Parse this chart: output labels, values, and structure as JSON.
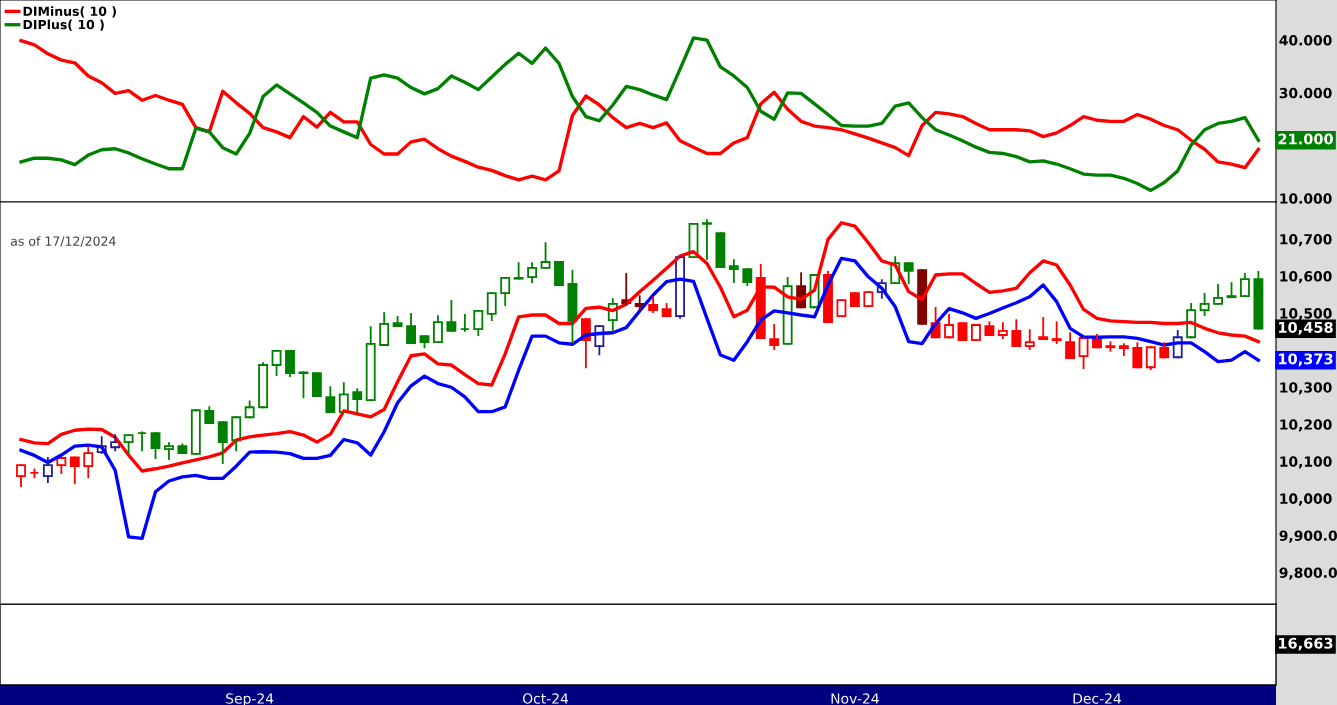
{
  "chart_data": [
    {
      "type": "line",
      "series": [
        {
          "name": "DIMinus( 10 )",
          "color": "#ff0000",
          "values": [
            39.9,
            39.1,
            37.4,
            36.2,
            35.7,
            33.2,
            31.9,
            29.9,
            30.4,
            28.6,
            29.5,
            28.6,
            27.8,
            23.4,
            22.6,
            30.3,
            28.1,
            26.1,
            23.4,
            22.6,
            21.5,
            25.5,
            23.5,
            26.3,
            24.5,
            24.5,
            20.2,
            18.4,
            18.4,
            20.7,
            21.2,
            19.4,
            18.0,
            17.0,
            15.9,
            15.3,
            14.3,
            13.5,
            14.2,
            13.5,
            15.2,
            25.7,
            29.4,
            27.7,
            25.3,
            23.4,
            24.2,
            23.4,
            24.3,
            20.9,
            19.7,
            18.5,
            18.5,
            20.5,
            21.5,
            27.9,
            30.1,
            26.9,
            24.6,
            23.7,
            23.4,
            23.0,
            22.2,
            21.4,
            20.5,
            19.6,
            18.1,
            23.8,
            26.3,
            26.0,
            25.5,
            24.2,
            23.0,
            23.0,
            23.0,
            22.8,
            21.7,
            22.4,
            23.8,
            25.5,
            24.8,
            24.6,
            24.6,
            25.9,
            25.0,
            23.8,
            23.0,
            21.0,
            19.3,
            16.9,
            16.5,
            15.8,
            19.3
          ]
        },
        {
          "name": "DIPlus( 10 )",
          "color": "#008000",
          "value_labels": [
            null,
            null,
            null,
            null,
            null,
            null,
            null,
            null,
            null,
            null,
            null,
            null,
            null,
            null,
            null,
            null,
            null,
            null,
            null,
            null,
            null,
            null,
            null,
            null,
            null,
            null,
            null,
            null,
            null,
            null,
            null,
            null,
            null,
            null,
            null,
            null,
            null,
            null,
            null,
            null,
            null,
            null,
            null,
            null,
            null,
            null,
            null,
            null,
            null,
            null,
            null,
            null,
            null,
            null,
            null,
            null,
            null,
            null,
            null,
            null,
            null,
            null,
            null,
            null,
            null,
            null,
            null,
            null,
            null,
            null,
            null,
            null,
            null,
            null,
            null,
            null,
            null,
            null,
            null,
            null,
            null,
            null,
            null,
            null,
            null,
            null,
            null,
            null,
            null,
            null,
            null,
            null,
            "21.000"
          ],
          "values": [
            16.9,
            17.6,
            17.6,
            17.3,
            16.4,
            18.2,
            19.2,
            19.4,
            18.6,
            17.5,
            16.5,
            15.6,
            15.6,
            23.3,
            22.6,
            19.6,
            18.4,
            22.3,
            29.3,
            31.5,
            29.8,
            28.1,
            26.3,
            23.7,
            22.6,
            21.5,
            32.8,
            33.4,
            32.8,
            31.0,
            29.8,
            30.8,
            33.2,
            32.0,
            30.6,
            33.0,
            35.4,
            37.5,
            35.6,
            38.5,
            35.6,
            29.3,
            25.5,
            24.7,
            27.7,
            31.2,
            30.6,
            29.6,
            28.7,
            34.5,
            40.4,
            40.0,
            34.9,
            33.2,
            31.0,
            26.5,
            25.0,
            30.0,
            29.9,
            27.9,
            25.9,
            23.8,
            23.7,
            23.7,
            24.2,
            27.5,
            28.1,
            25.3,
            23.0,
            22.0,
            20.9,
            19.7,
            18.7,
            18.5,
            17.9,
            16.9,
            17.1,
            16.5,
            15.6,
            14.6,
            14.4,
            14.4,
            13.8,
            12.8,
            11.5,
            13.0,
            15.2,
            20.1,
            23.0,
            24.2,
            24.6,
            25.3,
            21
          ]
        }
      ],
      "ylim": [
        9.3,
        47.6
      ],
      "yticks": [
        {
          "value": 10,
          "label": "10.000"
        },
        {
          "value": 30,
          "label": "30.000"
        },
        {
          "value": 40,
          "label": "40.000"
        }
      ],
      "tick_labels": "y",
      "legend": "top left"
    },
    {
      "type": "candlestick",
      "categories": [
        null,
        null,
        null,
        null,
        null,
        null,
        null,
        null,
        null,
        null,
        null,
        null,
        null,
        null,
        null,
        null,
        null,
        "Sep-24",
        null,
        null,
        null,
        null,
        null,
        null,
        null,
        null,
        null,
        null,
        null,
        null,
        null,
        null,
        null,
        null,
        null,
        null,
        null,
        null,
        null,
        "Oct-24",
        null,
        null,
        null,
        null,
        null,
        null,
        null,
        null,
        null,
        null,
        null,
        null,
        null,
        null,
        null,
        null,
        null,
        null,
        null,
        null,
        null,
        null,
        "Nov-24",
        null,
        null,
        null,
        null,
        null,
        null,
        null,
        null,
        null,
        null,
        null,
        null,
        null,
        null,
        null,
        null,
        null,
        "Dec-24",
        null,
        null,
        null,
        null,
        null,
        null,
        null,
        null,
        null,
        null,
        null,
        null
      ],
      "ohlc": [
        [
          10060,
          10090,
          10033,
          10090
        ],
        [
          10069,
          10078,
          10057,
          10069
        ],
        [
          10060,
          10109,
          10044,
          10090
        ],
        [
          10090,
          10109,
          10068,
          10109
        ],
        [
          10111,
          10111,
          10041,
          10087
        ],
        [
          10087,
          10138,
          10057,
          10122
        ],
        [
          10125,
          10165,
          10122,
          10141
        ],
        [
          10138,
          10171,
          10130,
          10152
        ],
        [
          10152,
          10171,
          10122,
          10171
        ],
        [
          10176,
          10178,
          10130,
          10176
        ],
        [
          10176,
          10176,
          10109,
          10136
        ],
        [
          10133,
          10149,
          10106,
          10141
        ],
        [
          10141,
          10146,
          10122,
          10122
        ],
        [
          10120,
          10238,
          10120,
          10238
        ],
        [
          10236,
          10246,
          10203,
          10203
        ],
        [
          10206,
          10206,
          10095,
          10152
        ],
        [
          10157,
          10219,
          10130,
          10219
        ],
        [
          10219,
          10262,
          10219,
          10246
        ],
        [
          10246,
          10365,
          10246,
          10360
        ],
        [
          10360,
          10398,
          10333,
          10398
        ],
        [
          10398,
          10398,
          10330,
          10338
        ],
        [
          10340,
          10341,
          10273,
          10338
        ],
        [
          10338,
          10338,
          10276,
          10276
        ],
        [
          10273,
          10300,
          10233,
          10233
        ],
        [
          10233,
          10311,
          10233,
          10281
        ],
        [
          10287,
          10295,
          10233,
          10268
        ],
        [
          10265,
          10462,
          10265,
          10417
        ],
        [
          10414,
          10500,
          10414,
          10471
        ],
        [
          10473,
          10490,
          10465,
          10465
        ],
        [
          10465,
          10498,
          10419,
          10419
        ],
        [
          10438,
          10438,
          10408,
          10422
        ],
        [
          10422,
          10492,
          10422,
          10476
        ],
        [
          10476,
          10533,
          10452,
          10452
        ],
        [
          10457,
          10495,
          10452,
          10457
        ],
        [
          10457,
          10506,
          10441,
          10506
        ],
        [
          10498,
          10554,
          10481,
          10554
        ],
        [
          10554,
          10595,
          10522,
          10595
        ],
        [
          10593,
          10635,
          10593,
          10595
        ],
        [
          10597,
          10635,
          10584,
          10622
        ],
        [
          10622,
          10689,
          10622,
          10638
        ],
        [
          10638,
          10638,
          10576,
          10576
        ],
        [
          10579,
          10614,
          10422,
          10479
        ],
        [
          10484,
          10484,
          10354,
          10427
        ],
        [
          10411,
          10465,
          10389,
          10465
        ],
        [
          10481,
          10538,
          10452,
          10525
        ],
        [
          10535,
          10606,
          10525,
          10527
        ],
        [
          10525,
          10546,
          10508,
          10519
        ],
        [
          10522,
          10543,
          10503,
          10508
        ],
        [
          10511,
          10525,
          10492,
          10492
        ],
        [
          10492,
          10651,
          10487,
          10651
        ],
        [
          10651,
          10741,
          10651,
          10741
        ],
        [
          10741,
          10751,
          10646,
          10743
        ],
        [
          10716,
          10716,
          10624,
          10624
        ],
        [
          10627,
          10643,
          10584,
          10619
        ],
        [
          10619,
          10619,
          10576,
          10584
        ],
        [
          10595,
          10630,
          10433,
          10433
        ],
        [
          10430,
          10468,
          10403,
          10414
        ],
        [
          10417,
          10595,
          10417,
          10573
        ],
        [
          10573,
          10608,
          10516,
          10516
        ],
        [
          10516,
          10603,
          10516,
          10603
        ],
        [
          10603,
          10611,
          10476,
          10476
        ],
        [
          10492,
          10535,
          10492,
          10535
        ],
        [
          10554,
          10554,
          10519,
          10519
        ],
        [
          10519,
          10557,
          10519,
          10557
        ],
        [
          10557,
          10589,
          10541,
          10581
        ],
        [
          10581,
          10651,
          10581,
          10635
        ],
        [
          10635,
          10635,
          10581,
          10614
        ],
        [
          10616,
          10616,
          10471,
          10471
        ],
        [
          10473,
          10514,
          10435,
          10435
        ],
        [
          10435,
          10495,
          10435,
          10468
        ],
        [
          10473,
          10473,
          10427,
          10427
        ],
        [
          10427,
          10468,
          10427,
          10468
        ],
        [
          10465,
          10476,
          10441,
          10441
        ],
        [
          10441,
          10473,
          10433,
          10452
        ],
        [
          10452,
          10481,
          10411,
          10411
        ],
        [
          10411,
          10454,
          10403,
          10422
        ],
        [
          10435,
          10487,
          10430,
          10430
        ],
        [
          10430,
          10476,
          10419,
          10427
        ],
        [
          10422,
          10446,
          10379,
          10379
        ],
        [
          10384,
          10433,
          10352,
          10433
        ],
        [
          10430,
          10441,
          10408,
          10408
        ],
        [
          10411,
          10422,
          10398,
          10408
        ],
        [
          10411,
          10416,
          10387,
          10406
        ],
        [
          10406,
          10419,
          10354,
          10354
        ],
        [
          10354,
          10408,
          10349,
          10408
        ],
        [
          10406,
          10419,
          10381,
          10381
        ],
        [
          10381,
          10452,
          10381,
          10435
        ],
        [
          10435,
          10525,
          10435,
          10508
        ],
        [
          10508,
          10552,
          10495,
          10525
        ],
        [
          10525,
          10576,
          10525,
          10541
        ],
        [
          10543,
          10581,
          10543,
          10546
        ],
        [
          10546,
          10606,
          10546,
          10592
        ],
        [
          10592,
          10611,
          10458,
          10458
        ]
      ],
      "colors": [
        "#ff0000",
        "#ff0000",
        "#1f1f99",
        "#ff0000",
        "#ff0000",
        "#ff0000",
        "#1f1f99",
        "#1f1f99",
        "#008000",
        "#008000",
        "#008000",
        "#008000",
        "#008000",
        "#008000",
        "#008000",
        "#008000",
        "#008000",
        "#008000",
        "#008000",
        "#008000",
        "#008000",
        "#008000",
        "#008000",
        "#008000",
        "#008000",
        "#008000",
        "#008000",
        "#008000",
        "#008000",
        "#008000",
        "#008000",
        "#008000",
        "#008000",
        "#008000",
        "#008000",
        "#008000",
        "#008000",
        "#008000",
        "#008000",
        "#008000",
        "#008000",
        "#008000",
        "#ff0000",
        "#1f1f99",
        "#008000",
        "#800000",
        "#800000",
        "#ff0000",
        "#ff0000",
        "#1f1f99",
        "#008000",
        "#008000",
        "#008000",
        "#008000",
        "#008000",
        "#ff0000",
        "#ff0000",
        "#008000",
        "#800000",
        "#008000",
        "#ff0000",
        "#ff0000",
        "#ff0000",
        "#ff0000",
        "#1f1f99",
        "#008000",
        "#008000",
        "#800000",
        "#ff0000",
        "#ff0000",
        "#ff0000",
        "#ff0000",
        "#ff0000",
        "#ff0000",
        "#ff0000",
        "#ff0000",
        "#ff0000",
        "#ff0000",
        "#ff0000",
        "#ff0000",
        "#ff0000",
        "#ff0000",
        "#ff0000",
        "#ff0000",
        "#ff0000",
        "#ff0000",
        "#1f1f99",
        "#008000",
        "#008000",
        "#008000",
        "#008000",
        "#008000",
        "#008000"
      ],
      "series": [
        {
          "type": "line",
          "color": "#ff0000",
          "values": [
            10159,
            10150,
            10148,
            10173,
            10184,
            10187,
            10186,
            10165,
            10117,
            10074,
            10080,
            10087,
            10096,
            10104,
            10112,
            10123,
            10157,
            10166,
            10171,
            10175,
            10180,
            10171,
            10152,
            10173,
            10236,
            10228,
            10220,
            10240,
            10315,
            10385,
            10390,
            10363,
            10360,
            10334,
            10310,
            10306,
            10390,
            10490,
            10495,
            10495,
            10472,
            10472,
            10513,
            10516,
            10507,
            10524,
            10558,
            10589,
            10621,
            10654,
            10666,
            10634,
            10570,
            10490,
            10508,
            10571,
            10570,
            10544,
            10537,
            10562,
            10699,
            10744,
            10735,
            10690,
            10641,
            10630,
            10558,
            10537,
            10603,
            10606,
            10606,
            10580,
            10556,
            10560,
            10567,
            10609,
            10641,
            10630,
            10576,
            10510,
            10486,
            10479,
            10477,
            10475,
            10475,
            10472,
            10472,
            10475,
            10459,
            10447,
            10441,
            10438,
            10423
          ]
        },
        {
          "type": "line",
          "color": "#0000ff",
          "value_labels": [
            null,
            null,
            null,
            null,
            null,
            null,
            null,
            null,
            null,
            null,
            null,
            null,
            null,
            null,
            null,
            null,
            null,
            null,
            null,
            null,
            null,
            null,
            null,
            null,
            null,
            null,
            null,
            null,
            null,
            null,
            null,
            null,
            null,
            null,
            null,
            null,
            null,
            null,
            null,
            null,
            null,
            null,
            null,
            null,
            null,
            null,
            null,
            null,
            null,
            null,
            null,
            null,
            null,
            null,
            null,
            null,
            null,
            null,
            null,
            null,
            null,
            null,
            null,
            null,
            null,
            null,
            null,
            null,
            null,
            null,
            null,
            null,
            null,
            null,
            null,
            null,
            null,
            null,
            null,
            null,
            null,
            null,
            null,
            null,
            null,
            null,
            null,
            null,
            null,
            null,
            null,
            null,
            "10,373"
          ],
          "values": [
            10130,
            10116,
            10097,
            10117,
            10141,
            10144,
            10139,
            10076,
            9896,
            9892,
            10018,
            10047,
            10058,
            10062,
            10054,
            10054,
            10087,
            10125,
            10126,
            10125,
            10121,
            10108,
            10108,
            10116,
            10159,
            10150,
            10117,
            10180,
            10258,
            10304,
            10330,
            10310,
            10300,
            10274,
            10234,
            10234,
            10247,
            10346,
            10438,
            10438,
            10420,
            10416,
            10441,
            10445,
            10447,
            10461,
            10506,
            10549,
            10585,
            10592,
            10586,
            10486,
            10387,
            10373,
            10423,
            10481,
            10506,
            10501,
            10495,
            10490,
            10576,
            10648,
            10641,
            10598,
            10567,
            10517,
            10423,
            10418,
            10472,
            10512,
            10501,
            10486,
            10499,
            10514,
            10528,
            10544,
            10576,
            10531,
            10459,
            10436,
            10435,
            10436,
            10436,
            10432,
            10423,
            10414,
            10420,
            10420,
            10396,
            10369,
            10373,
            10396,
            10373
          ]
        }
      ],
      "ylim": [
        9715,
        10800
      ],
      "yticks": [
        {
          "value": 9800,
          "label": "9,800.0"
        },
        {
          "value": 9900,
          "label": "9,900.0"
        },
        {
          "value": 10000,
          "label": "10,000"
        },
        {
          "value": 10100,
          "label": "10,100"
        },
        {
          "value": 10200,
          "label": "10,200"
        },
        {
          "value": 10300,
          "label": "10,300"
        },
        {
          "value": 10500,
          "label": "10,500"
        },
        {
          "value": 10600,
          "label": "10,600"
        },
        {
          "value": 10700,
          "label": "10,700"
        }
      ],
      "value_labels": [
        null,
        null,
        null,
        null,
        null,
        null,
        null,
        null,
        null,
        null,
        null,
        null,
        null,
        null,
        null,
        null,
        null,
        null,
        null,
        null,
        null,
        null,
        null,
        null,
        null,
        null,
        null,
        null,
        null,
        null,
        null,
        null,
        null,
        null,
        null,
        null,
        null,
        null,
        null,
        null,
        null,
        null,
        null,
        null,
        null,
        null,
        null,
        null,
        null,
        null,
        null,
        null,
        null,
        null,
        null,
        null,
        null,
        null,
        null,
        null,
        null,
        null,
        null,
        null,
        null,
        null,
        null,
        null,
        null,
        null,
        null,
        null,
        null,
        null,
        null,
        null,
        null,
        null,
        null,
        null,
        null,
        null,
        null,
        null,
        null,
        null,
        null,
        null,
        null,
        null,
        null,
        null,
        "10,458"
      ],
      "annotations": [
        "as of 17/12/2024",
        "16,663"
      ]
    }
  ]
}
